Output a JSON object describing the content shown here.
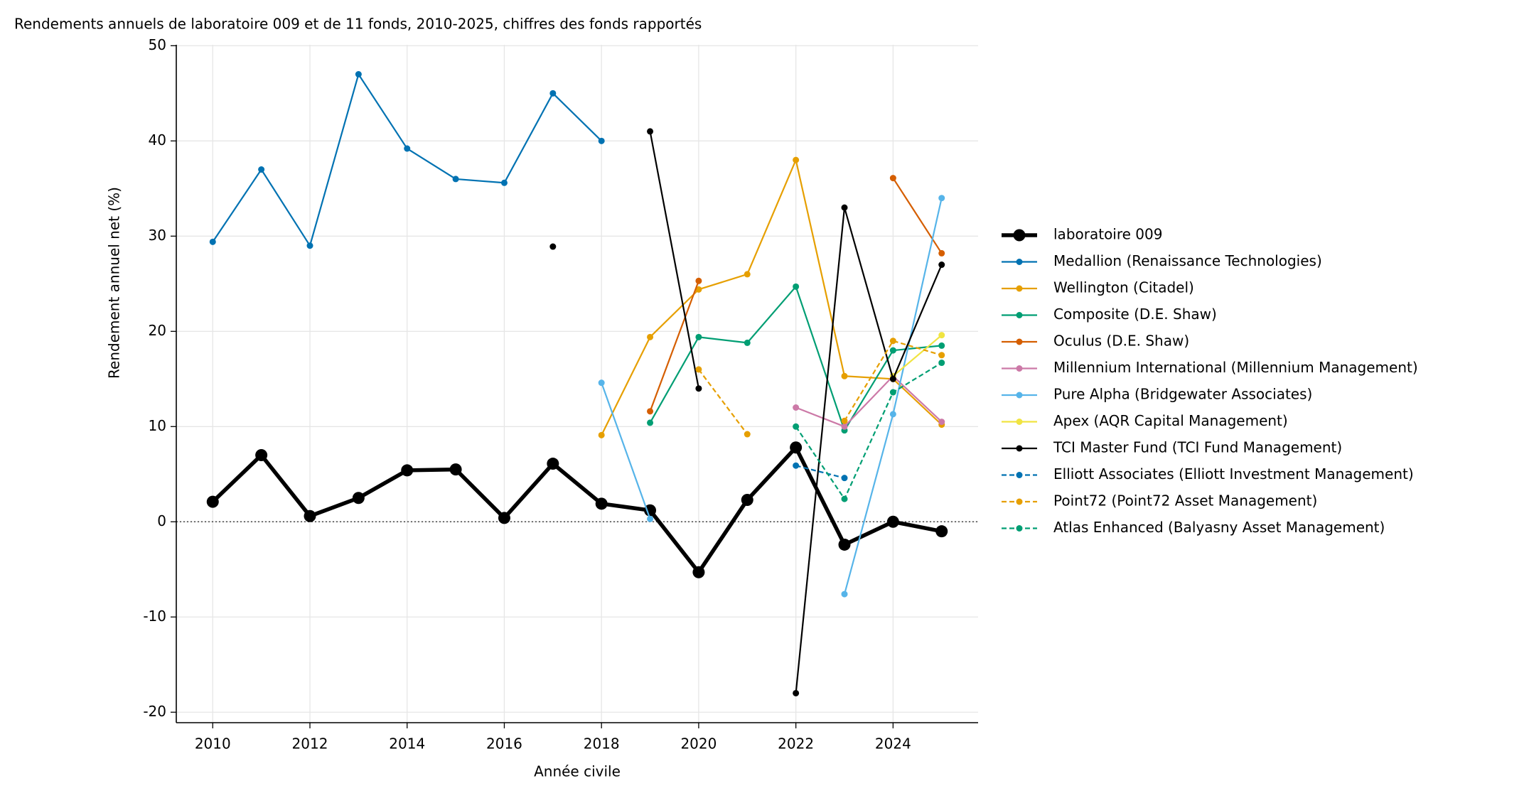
{
  "chart_data": {
    "type": "line",
    "title": "Rendements annuels de laboratoire 009 et de 11 fonds, 2010-2025, chiffres des fonds rapportés",
    "xlabel": "Année civile",
    "ylabel": "Rendement annuel net (%)",
    "xlim": [
      2009.25,
      2025.75
    ],
    "ylim": [
      -21.1,
      50.1
    ],
    "xticks": [
      2010,
      2012,
      2014,
      2016,
      2018,
      2020,
      2022,
      2024
    ],
    "yticks": [
      -20,
      -10,
      0,
      10,
      20,
      30,
      40,
      50
    ],
    "grid": true,
    "reference_line": 0,
    "legend": "right",
    "series": [
      {
        "name": "laboratoire 009",
        "color": "#000000",
        "linestyle": "bold",
        "x": [
          2010,
          2011,
          2012,
          2013,
          2014,
          2015,
          2016,
          2017,
          2018,
          2019,
          2020,
          2021,
          2022,
          2023,
          2024,
          2025
        ],
        "values": [
          2.1,
          7.0,
          0.6,
          2.5,
          5.4,
          5.5,
          0.4,
          6.1,
          1.9,
          1.2,
          -5.3,
          2.3,
          7.8,
          -2.4,
          0.0,
          -1.0
        ]
      },
      {
        "name": "Medallion (Renaissance Technologies)",
        "color": "#0072b2",
        "linestyle": "solid",
        "x": [
          2010,
          2011,
          2012,
          2013,
          2014,
          2015,
          2016,
          2017,
          2018
        ],
        "values": [
          29.4,
          37.0,
          29.0,
          47.0,
          39.2,
          36.0,
          35.6,
          45.0,
          40.0
        ]
      },
      {
        "name": "Wellington (Citadel)",
        "color": "#e69f00",
        "linestyle": "solid",
        "x": [
          2018,
          2019,
          2020,
          2021,
          2022,
          2023,
          2024,
          2025
        ],
        "values": [
          9.1,
          19.4,
          24.4,
          26.0,
          38.0,
          15.3,
          15.0,
          10.2
        ]
      },
      {
        "name": "Composite (D.E. Shaw)",
        "color": "#009e73",
        "linestyle": "solid",
        "x": [
          2019,
          2020,
          2021,
          2022,
          2023,
          2024,
          2025
        ],
        "values": [
          10.4,
          19.4,
          18.8,
          24.7,
          9.6,
          18.0,
          18.5
        ]
      },
      {
        "name": "Oculus (D.E. Shaw)",
        "color": "#d55e00",
        "linestyle": "solid",
        "x": [
          2019,
          2020,
          2021,
          2022,
          2023,
          2024,
          2025
        ],
        "values": [
          11.6,
          25.3,
          null,
          null,
          null,
          36.1,
          28.2
        ]
      },
      {
        "name": "Millennium International (Millennium Management)",
        "color": "#cc79a7",
        "linestyle": "solid",
        "x": [
          2022,
          2023,
          2024,
          2025
        ],
        "values": [
          12.0,
          10.0,
          15.3,
          10.5
        ]
      },
      {
        "name": "Pure Alpha (Bridgewater Associates)",
        "color": "#56b4e9",
        "linestyle": "solid",
        "x": [
          2018,
          2019,
          2020,
          2021,
          2022,
          2023,
          2024,
          2025
        ],
        "values": [
          14.6,
          0.3,
          null,
          null,
          null,
          -7.6,
          11.3,
          34.0
        ]
      },
      {
        "name": "Apex (AQR Capital Management)",
        "color": "#f0e442",
        "linestyle": "solid",
        "x": [
          2024,
          2025
        ],
        "values": [
          15.3,
          19.6
        ]
      },
      {
        "name": "TCI Master Fund (TCI Fund Management)",
        "color": "#000000",
        "linestyle": "solid",
        "x": [
          2017,
          2018,
          2019,
          2020,
          2021,
          2022,
          2023,
          2024,
          2025
        ],
        "values": [
          28.9,
          null,
          41.0,
          14.0,
          null,
          -18.0,
          33.0,
          15.0,
          27.0
        ]
      },
      {
        "name": "Elliott Associates (Elliott Investment Management)",
        "color": "#0072b2",
        "linestyle": "dashed",
        "x": [
          2022,
          2023
        ],
        "values": [
          5.9,
          4.6
        ]
      },
      {
        "name": "Point72 (Point72 Asset Management)",
        "color": "#e69f00",
        "linestyle": "dashed",
        "x": [
          2020,
          2021,
          2022,
          2023,
          2024,
          2025
        ],
        "values": [
          16.0,
          9.2,
          null,
          10.6,
          19.0,
          17.5
        ]
      },
      {
        "name": "Atlas Enhanced (Balyasny Asset Management)",
        "color": "#009e73",
        "linestyle": "dashed",
        "x": [
          2022,
          2023,
          2024,
          2025
        ],
        "values": [
          10.0,
          2.4,
          13.6,
          16.7
        ]
      }
    ]
  }
}
